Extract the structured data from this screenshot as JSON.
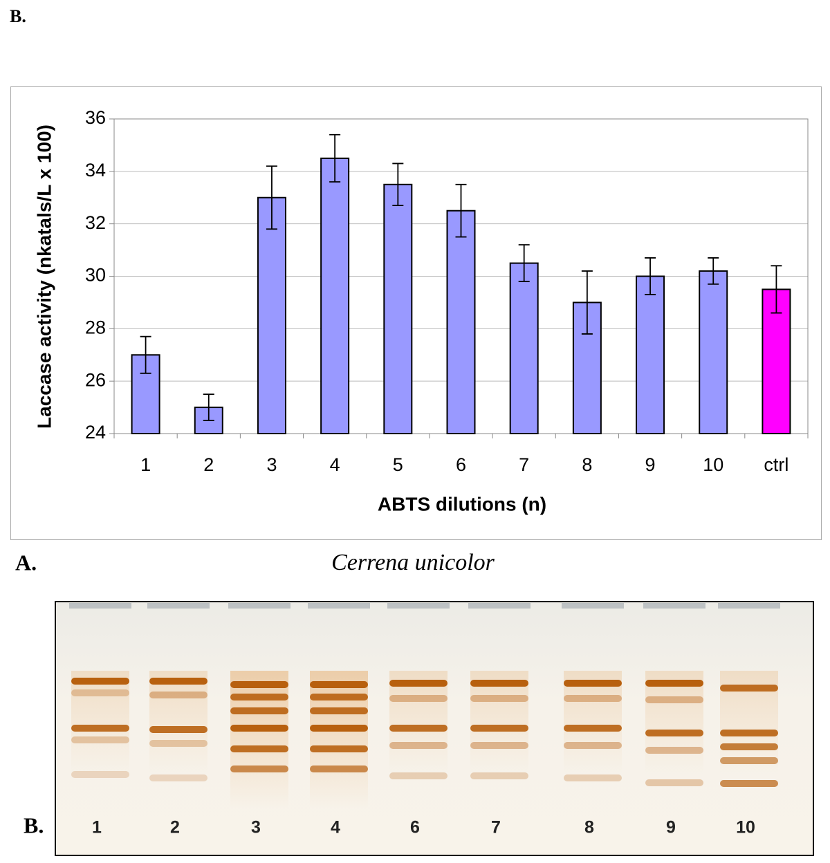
{
  "panel_label_top": "B.",
  "chart_data": {
    "type": "bar",
    "y_label": "Laccase activity (nkatals/L x 100)",
    "x_label": "ABTS dilutions (n)",
    "categories": [
      "1",
      "2",
      "3",
      "4",
      "5",
      "6",
      "7",
      "8",
      "9",
      "10",
      "ctrl"
    ],
    "values": [
      27,
      25,
      33,
      34.5,
      33.5,
      32.5,
      30.5,
      29,
      30,
      30.2,
      29.5
    ],
    "errors": [
      0.7,
      0.5,
      1.2,
      0.9,
      0.8,
      1.0,
      0.7,
      1.2,
      0.7,
      0.5,
      0.9
    ],
    "colors": [
      "#9999ff",
      "#9999ff",
      "#9999ff",
      "#9999ff",
      "#9999ff",
      "#9999ff",
      "#9999ff",
      "#9999ff",
      "#9999ff",
      "#9999ff",
      "#ff00ff"
    ],
    "ylim": [
      24,
      36
    ],
    "yticks": [
      24,
      26,
      28,
      30,
      32,
      34,
      36
    ],
    "grid": true
  },
  "gel": {
    "panel_label_left": "A.",
    "title": "Cerrena unicolor",
    "panel_label_bottom": "B.",
    "lanes": [
      "1",
      "2",
      "3",
      "4",
      "6",
      "7",
      "8",
      "9",
      "10"
    ]
  }
}
